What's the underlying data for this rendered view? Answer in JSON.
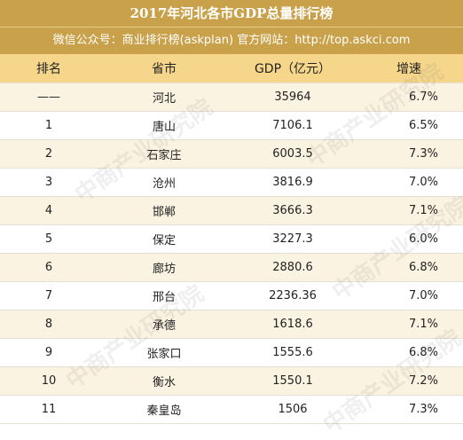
{
  "header": {
    "title": "2017年河北各市GDP总量排行榜",
    "subtitle": "微信公众号：商业排行榜(askplan)   官方网站：http://top.askci.com"
  },
  "table": {
    "columns": [
      "排名",
      "省市",
      "GDP（亿元）",
      "增速"
    ],
    "rows": [
      {
        "rank": "——",
        "city": "河北",
        "gdp": "35964",
        "growth": "6.7%"
      },
      {
        "rank": "1",
        "city": "唐山",
        "gdp": "7106.1",
        "growth": "6.5%"
      },
      {
        "rank": "2",
        "city": "石家庄",
        "gdp": "6003.5",
        "growth": "7.3%"
      },
      {
        "rank": "3",
        "city": "沧州",
        "gdp": "3816.9",
        "growth": "7.0%"
      },
      {
        "rank": "4",
        "city": "邯郸",
        "gdp": "3666.3",
        "growth": "7.1%"
      },
      {
        "rank": "5",
        "city": "保定",
        "gdp": "3227.3",
        "growth": "6.0%"
      },
      {
        "rank": "6",
        "city": "廊坊",
        "gdp": "2880.6",
        "growth": "6.8%"
      },
      {
        "rank": "7",
        "city": "邢台",
        "gdp": "2236.36",
        "growth": "7.0%"
      },
      {
        "rank": "8",
        "city": "承德",
        "gdp": "1618.6",
        "growth": "7.1%"
      },
      {
        "rank": "9",
        "city": "张家口",
        "gdp": "1555.6",
        "growth": "6.8%"
      },
      {
        "rank": "10",
        "city": "衡水",
        "gdp": "1550.1",
        "growth": "7.2%"
      },
      {
        "rank": "11",
        "city": "秦皇岛",
        "gdp": "1506",
        "growth": "7.3%"
      }
    ]
  },
  "watermark": {
    "text": "中商产业研究院"
  }
}
